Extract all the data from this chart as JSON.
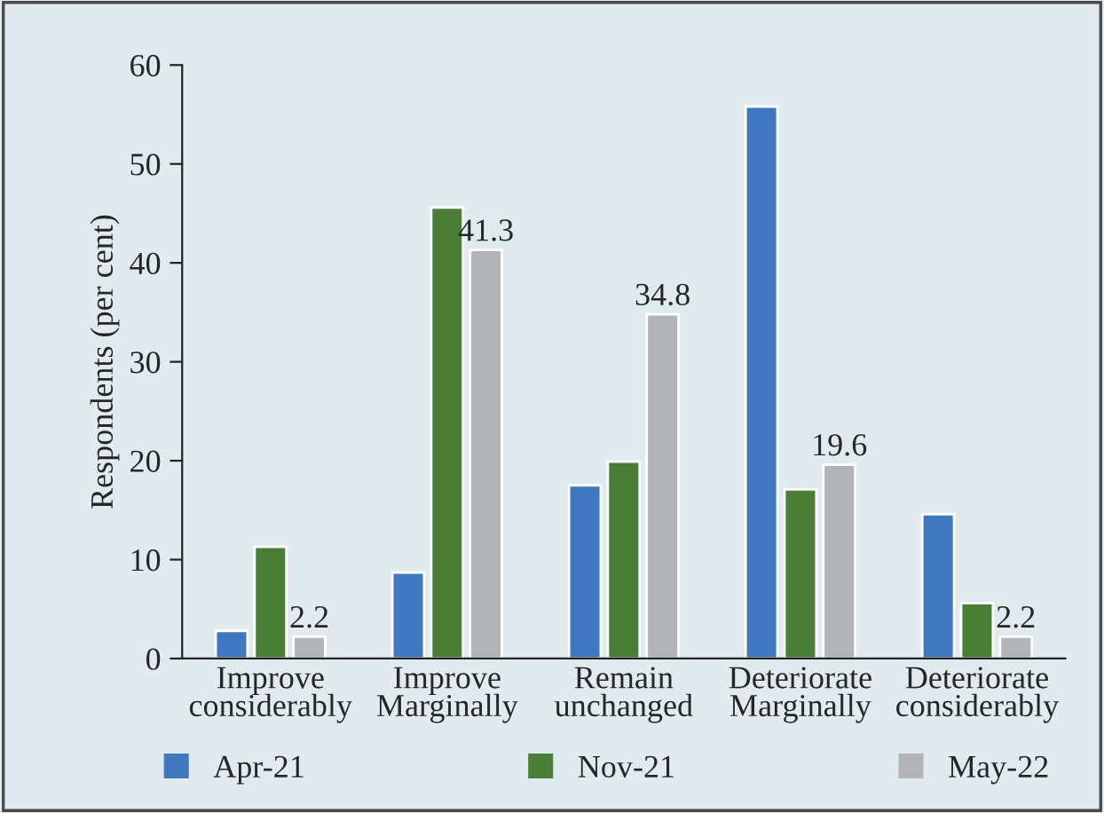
{
  "chart_data": {
    "type": "bar",
    "ylabel": "Respondents (per cent)",
    "categories": [
      "Improve\nconsiderably",
      "Improve\nMarginally",
      "Remain\nunchanged",
      "Deteriorate\nMarginally",
      "Deteriorate\nconsiderably"
    ],
    "series": [
      {
        "name": "Apr-21",
        "color": "#3f78be",
        "values": [
          2.8,
          8.7,
          17.5,
          55.8,
          14.6
        ]
      },
      {
        "name": "Nov-21",
        "color": "#4a7d36",
        "values": [
          11.3,
          45.6,
          19.9,
          17.1,
          5.6
        ]
      },
      {
        "name": "May-22",
        "color": "#b3b4b8",
        "values": [
          2.2,
          41.3,
          34.8,
          19.6,
          2.2
        ],
        "value_labels": [
          "2.2",
          "41.3",
          "34.8",
          "19.6",
          "2.2"
        ]
      }
    ],
    "ylim": [
      0,
      60
    ],
    "yticks": [
      0,
      10,
      20,
      30,
      40,
      50,
      60
    ],
    "grid": false,
    "legend": "bottom"
  }
}
